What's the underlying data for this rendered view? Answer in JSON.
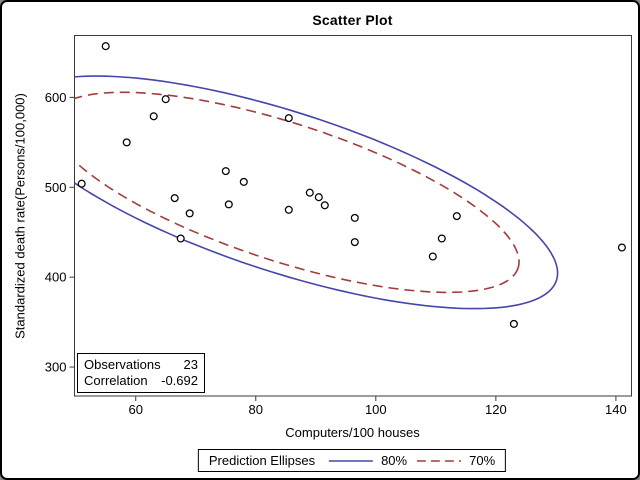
{
  "chart_data": {
    "type": "scatter",
    "title": "Scatter Plot",
    "xlabel": "Computers/100 houses",
    "ylabel": "Standardized death rate(Persons/100,000)",
    "xlim": [
      49.8,
      142.6
    ],
    "ylim": [
      267.8,
      668.9
    ],
    "xticks": [
      60,
      80,
      100,
      120,
      140
    ],
    "yticks": [
      300,
      400,
      500,
      600
    ],
    "grid": false,
    "marker": "open-circle",
    "points": [
      [
        55,
        657
      ],
      [
        65,
        598
      ],
      [
        63,
        579
      ],
      [
        58.5,
        550
      ],
      [
        51,
        504
      ],
      [
        85.5,
        577
      ],
      [
        75,
        518
      ],
      [
        78,
        506
      ],
      [
        66.5,
        488
      ],
      [
        69,
        471
      ],
      [
        75.5,
        481
      ],
      [
        85.5,
        475
      ],
      [
        89,
        494
      ],
      [
        90.5,
        489
      ],
      [
        91.5,
        480
      ],
      [
        96.5,
        466
      ],
      [
        113.5,
        468
      ],
      [
        67.5,
        443
      ],
      [
        96.5,
        439
      ],
      [
        111,
        443
      ],
      [
        109.5,
        423
      ],
      [
        141,
        433
      ],
      [
        123,
        348
      ]
    ],
    "ellipses": [
      {
        "label": "80%",
        "line": "solid",
        "color": "#4646aa",
        "center": [
          84.9,
          494.4
        ],
        "u": [
          45.2,
          -97.9
        ],
        "v": [
          -4.1,
          -84.6
        ]
      },
      {
        "label": "70%",
        "line": "dashed",
        "color": "#a33c3c",
        "center": [
          84.9,
          494.4
        ],
        "u": [
          38.8,
          -84.1
        ],
        "v": [
          -3.5,
          -72.9
        ]
      }
    ],
    "inset": {
      "rows": [
        {
          "label": "Observations",
          "value": "23"
        },
        {
          "label": "Correlation",
          "value": "-0.692"
        }
      ]
    },
    "legend": {
      "title": "Prediction Ellipses",
      "position": "bottom",
      "entries": [
        {
          "label": "80%",
          "line": "solid",
          "color": "#4646aa"
        },
        {
          "label": "70%",
          "line": "dashed",
          "color": "#a33c3c"
        }
      ]
    }
  }
}
